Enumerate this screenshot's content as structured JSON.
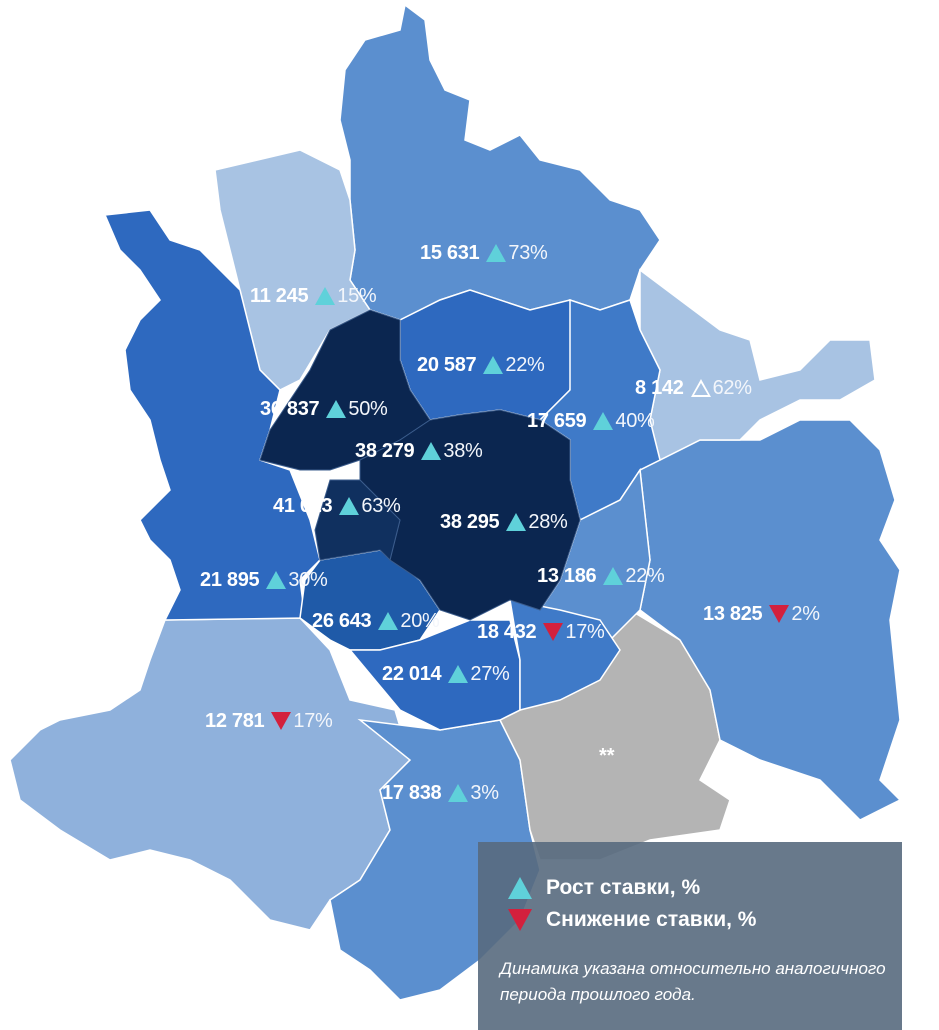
{
  "colors": {
    "lightest": "#a8c3e3",
    "light": "#8fb1dc",
    "medium": "#5b8fcf",
    "medium_dark": "#3f7ac8",
    "dark": "#2e69bf",
    "darker": "#1f5aa8",
    "darkest": "#0b2650",
    "darkest_alt": "#10305f",
    "gray": "#b4b4b4",
    "up_marker": "#5fd1da",
    "down_marker": "#d3203d"
  },
  "districts": [
    {
      "value": "15 631",
      "dir": "up",
      "pct": "73%"
    },
    {
      "value": "11 245",
      "dir": "up",
      "pct": "15%"
    },
    {
      "value": "20 587",
      "dir": "up",
      "pct": "22%"
    },
    {
      "value": "8 142",
      "dir": "up-outline",
      "pct": "62%"
    },
    {
      "value": "36 837",
      "dir": "up",
      "pct": "50%"
    },
    {
      "value": "17 659",
      "dir": "up",
      "pct": "40%"
    },
    {
      "value": "38 279",
      "dir": "up",
      "pct": "38%"
    },
    {
      "value": "41 023",
      "dir": "up",
      "pct": "63%"
    },
    {
      "value": "38 295",
      "dir": "up",
      "pct": "28%"
    },
    {
      "value": "21 895",
      "dir": "up",
      "pct": "30%"
    },
    {
      "value": "13 186",
      "dir": "up",
      "pct": "22%"
    },
    {
      "value": "26 643",
      "dir": "up",
      "pct": "20%"
    },
    {
      "value": "18 432",
      "dir": "down",
      "pct": "17%"
    },
    {
      "value": "13 825",
      "dir": "down",
      "pct": "2%"
    },
    {
      "value": "22 014",
      "dir": "up",
      "pct": "27%"
    },
    {
      "value": "12 781",
      "dir": "down",
      "pct": "17%"
    },
    {
      "value": "17 838",
      "dir": "up",
      "pct": "3%"
    }
  ],
  "no_data_mark": "**",
  "legend": {
    "up_label": "Рост ставки, %",
    "down_label": "Снижение ставки, %",
    "note": "Динамика указана относительно аналогичного периода прошлого года."
  }
}
